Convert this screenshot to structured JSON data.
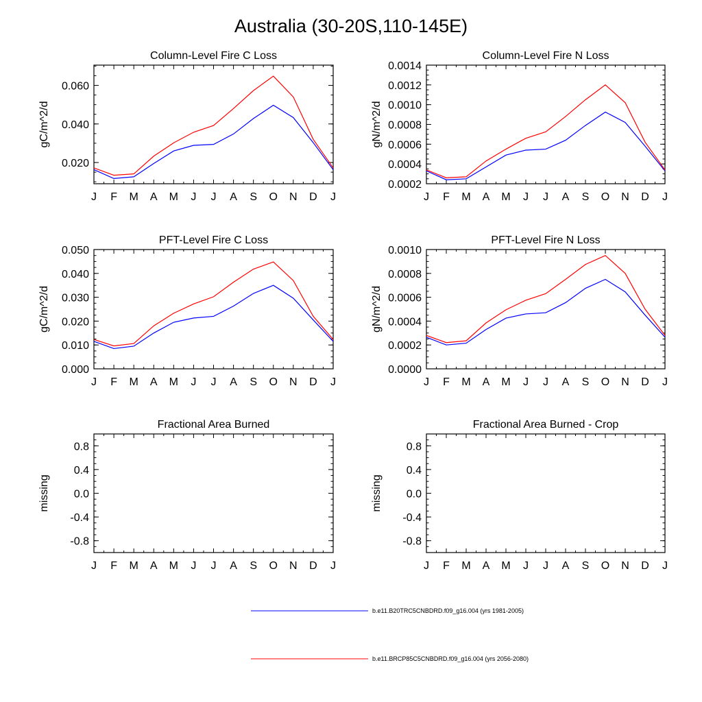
{
  "title": "Australia (30-20S,110-145E)",
  "months": [
    "J",
    "F",
    "M",
    "A",
    "M",
    "J",
    "J",
    "A",
    "S",
    "O",
    "N",
    "D",
    "J"
  ],
  "legend": [
    {
      "label": "b.e11.B20TRC5CNBDRD.f09_g16.004 (yrs 1981-2005)",
      "color": "#0000ff"
    },
    {
      "label": "b.e11.BRCP85C5CNBDRD.f09_g16.004 (yrs 2056-2080)",
      "color": "#ff0000"
    }
  ],
  "chart_data": [
    {
      "type": "line",
      "title": "Column-Level Fire C Loss",
      "ylabel": "gC/m^2/d",
      "ylim": [
        0.009,
        0.0705
      ],
      "yticks": [
        "0.020",
        "0.040",
        "0.060"
      ],
      "series": [
        {
          "name": "b.e11.B20TRC5CNBDRD.f09_g16.004 (yrs 1981-2005)",
          "color": "#0000ff",
          "values": [
            0.0163,
            0.0117,
            0.0126,
            0.0195,
            0.026,
            0.0289,
            0.0294,
            0.0348,
            0.0428,
            0.0497,
            0.0433,
            0.0303,
            0.0163
          ]
        },
        {
          "name": "b.e11.BRCP85C5CNBDRD.f09_g16.004 (yrs 2056-2080)",
          "color": "#ff0000",
          "values": [
            0.0172,
            0.0134,
            0.0141,
            0.0233,
            0.0302,
            0.0357,
            0.0392,
            0.048,
            0.0573,
            0.0648,
            0.054,
            0.032,
            0.0172
          ]
        }
      ]
    },
    {
      "type": "line",
      "title": "Column-Level Fire N Loss",
      "ylabel": "gN/m^2/d",
      "ylim": [
        0.0002,
        0.0014
      ],
      "yticks": [
        "0.0002",
        "0.0004",
        "0.0006",
        "0.0008",
        "0.0010",
        "0.0012",
        "0.0014"
      ],
      "series": [
        {
          "name": "b.e11.B20TRC5CNBDRD.f09_g16.004 (yrs 1981-2005)",
          "color": "#0000ff",
          "values": [
            0.00033,
            0.00024,
            0.00025,
            0.00037,
            0.00049,
            0.00054,
            0.00055,
            0.00064,
            0.00079,
            0.000925,
            0.00082,
            0.00058,
            0.00033
          ]
        },
        {
          "name": "b.e11.BRCP85C5CNBDRD.f09_g16.004 (yrs 2056-2080)",
          "color": "#ff0000",
          "values": [
            0.00034,
            0.00026,
            0.00027,
            0.00043,
            0.00055,
            0.00066,
            0.000725,
            0.00088,
            0.00105,
            0.0012,
            0.00102,
            0.00062,
            0.00034
          ]
        }
      ]
    },
    {
      "type": "line",
      "title": "PFT-Level Fire C Loss",
      "ylabel": "gC/m^2/d",
      "ylim": [
        0,
        0.05
      ],
      "yticks": [
        "0.000",
        "0.010",
        "0.020",
        "0.030",
        "0.040",
        "0.050"
      ],
      "series": [
        {
          "name": "b.e11.B20TRC5CNBDRD.f09_g16.004 (yrs 1981-2005)",
          "color": "#0000ff",
          "values": [
            0.0115,
            0.0085,
            0.0095,
            0.015,
            0.0195,
            0.0213,
            0.022,
            0.0263,
            0.0316,
            0.035,
            0.0296,
            0.0205,
            0.0115
          ]
        },
        {
          "name": "b.e11.BRCP85C5CNBDRD.f09_g16.004 (yrs 2056-2080)",
          "color": "#ff0000",
          "values": [
            0.0123,
            0.0096,
            0.0106,
            0.018,
            0.0233,
            0.0272,
            0.0302,
            0.0363,
            0.0418,
            0.0448,
            0.037,
            0.022,
            0.0123
          ]
        }
      ]
    },
    {
      "type": "line",
      "title": "PFT-Level Fire N Loss",
      "ylabel": "gN/m^2/d",
      "ylim": [
        0,
        0.001
      ],
      "yticks": [
        "0.0000",
        "0.0002",
        "0.0004",
        "0.0006",
        "0.0008",
        "0.0010"
      ],
      "series": [
        {
          "name": "b.e11.B20TRC5CNBDRD.f09_g16.004 (yrs 1981-2005)",
          "color": "#0000ff",
          "values": [
            0.000265,
            0.0002,
            0.000215,
            0.00033,
            0.000425,
            0.00046,
            0.00047,
            0.000555,
            0.000675,
            0.00075,
            0.000645,
            0.00045,
            0.000265
          ]
        },
        {
          "name": "b.e11.BRCP85C5CNBDRD.f09_g16.004 (yrs 2056-2080)",
          "color": "#ff0000",
          "values": [
            0.00028,
            0.00022,
            0.000235,
            0.000385,
            0.000495,
            0.000575,
            0.00063,
            0.00075,
            0.000875,
            0.00095,
            0.0008,
            0.0005,
            0.00028
          ]
        }
      ]
    },
    {
      "type": "line",
      "title": "Fractional Area Burned",
      "ylabel": "missing",
      "ylim": [
        -1,
        1
      ],
      "yticks": [
        "-0.8",
        "-0.4",
        "0.0",
        "0.4",
        "0.8"
      ],
      "series": []
    },
    {
      "type": "line",
      "title": "Fractional Area Burned - Crop",
      "ylabel": "missing",
      "ylim": [
        -1,
        1
      ],
      "yticks": [
        "-0.8",
        "-0.4",
        "0.0",
        "0.4",
        "0.8"
      ],
      "series": []
    }
  ]
}
